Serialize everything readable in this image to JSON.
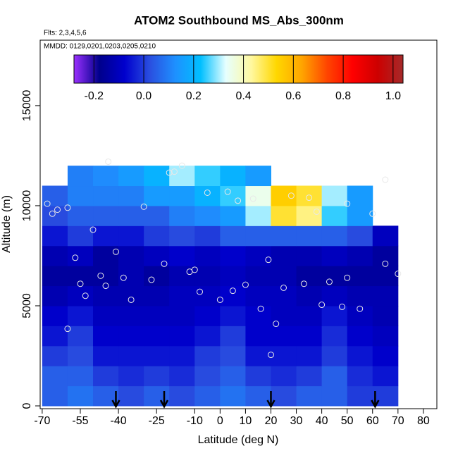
{
  "chart_data": {
    "type": "heatmap",
    "title": "ATOM2 Southbound MS_Abs_300nm",
    "subtitle_1": "Flts: 2,3,4,5,6",
    "subtitle_2": "MMDD: 0129,0201,0203,0205,0210",
    "x_label": "Latitude (deg N)",
    "y_label": "Altitude (m)",
    "xlim": [
      -70.8,
      85.3
    ],
    "ylim": [
      -140,
      18270
    ],
    "xticks": [
      -70,
      -55,
      -40,
      -25,
      -10,
      0,
      10,
      20,
      30,
      40,
      50,
      60,
      70,
      80
    ],
    "yticks": [
      0,
      5000,
      10000,
      15000
    ],
    "x_edges": [
      -70,
      -60,
      -50,
      -40,
      -30,
      -20,
      -10,
      0,
      10,
      20,
      30,
      40,
      50,
      60,
      70
    ],
    "y_edges": [
      0,
      1000,
      2000,
      3000,
      4000,
      5000,
      6000,
      7000,
      8000,
      9000,
      10000,
      11000,
      12000
    ],
    "z": [
      [
        0.05,
        0.08,
        0.05,
        0.02,
        0.05,
        0.02,
        0.05,
        0.08,
        0.05,
        0.02,
        0.05,
        0.05,
        0.0,
        0.0
      ],
      [
        0.05,
        0.05,
        0.0,
        -0.02,
        0.0,
        -0.02,
        0.02,
        0.05,
        0.0,
        -0.02,
        0.0,
        0.05,
        -0.02,
        -0.05
      ],
      [
        0.0,
        0.02,
        -0.05,
        -0.05,
        -0.05,
        -0.05,
        0.0,
        0.02,
        -0.05,
        -0.05,
        -0.05,
        0.0,
        -0.05,
        -0.08
      ],
      [
        -0.05,
        0.0,
        -0.08,
        -0.08,
        -0.08,
        -0.08,
        -0.05,
        0.0,
        -0.08,
        -0.08,
        -0.08,
        -0.02,
        -0.08,
        -0.1
      ],
      [
        -0.08,
        -0.05,
        -0.1,
        -0.1,
        -0.1,
        -0.1,
        -0.08,
        -0.05,
        -0.08,
        -0.1,
        -0.1,
        -0.05,
        -0.1,
        -0.12
      ],
      [
        -0.12,
        -0.1,
        -0.12,
        -0.12,
        -0.12,
        -0.1,
        -0.1,
        -0.08,
        -0.1,
        -0.1,
        -0.12,
        -0.1,
        -0.12,
        -0.12
      ],
      [
        -0.15,
        -0.15,
        -0.15,
        -0.12,
        -0.15,
        -0.12,
        -0.12,
        -0.1,
        -0.12,
        -0.12,
        -0.15,
        -0.15,
        -0.15,
        -0.15
      ],
      [
        -0.12,
        -0.1,
        -0.15,
        -0.12,
        -0.1,
        -0.08,
        -0.1,
        -0.08,
        -0.1,
        -0.12,
        -0.12,
        -0.1,
        -0.12,
        -0.15
      ],
      [
        -0.05,
        0.0,
        -0.05,
        -0.05,
        0.0,
        0.02,
        0.0,
        0.05,
        0.05,
        0.05,
        0.05,
        0.05,
        0.02,
        -0.1
      ],
      [
        0.02,
        0.05,
        0.05,
        0.05,
        0.05,
        0.1,
        0.12,
        0.15,
        0.3,
        0.5,
        0.45,
        0.25,
        0.15,
        null
      ],
      [
        0.05,
        0.1,
        0.1,
        0.1,
        0.15,
        0.15,
        0.2,
        0.25,
        0.35,
        0.55,
        0.5,
        0.3,
        0.15,
        null
      ],
      [
        null,
        0.1,
        0.12,
        0.15,
        0.2,
        0.3,
        0.25,
        0.2,
        0.15,
        null,
        null,
        null,
        null,
        null
      ]
    ],
    "clim": [
      -0.28,
      1.04
    ],
    "cticks": [
      -0.2,
      {
        "value": 0,
        "label": "0.0"
      },
      0.2,
      0.4,
      0.6,
      0.8,
      {
        "value": 1,
        "label": "1.0"
      }
    ],
    "colors": [
      "#9b30ff",
      "#00008b",
      "#0000cd",
      "#2a4fe0",
      "#1e90ff",
      "#00bfff",
      "#e6ffff",
      "#fff8a0",
      "#ffd700",
      "#ffa500",
      "#ff4500",
      "#ff0000",
      "#cd0000",
      "#a52a2a"
    ],
    "points": {
      "x": [
        -68,
        -66,
        -64,
        -60,
        -57,
        -55,
        -53,
        -50,
        -47,
        -44,
        -41,
        -38,
        -35,
        -30,
        -27,
        -22,
        -18,
        -15,
        -12,
        -10,
        -8,
        -5,
        0,
        3,
        7,
        10,
        13,
        16,
        19,
        22,
        25,
        28,
        33,
        38,
        40,
        43,
        48,
        50,
        55,
        60,
        65,
        70,
        -60,
        -45,
        -20,
        5,
        20,
        35,
        50,
        65
      ],
      "y": [
        10100,
        9600,
        9800,
        9900,
        7400,
        6100,
        5500,
        8800,
        6500,
        12200,
        7700,
        6400,
        5300,
        9950,
        6300,
        7100,
        11700,
        12000,
        6700,
        6800,
        5700,
        10650,
        5300,
        10700,
        10250,
        6050,
        10350,
        4850,
        7300,
        4100,
        5900,
        10500,
        6100,
        9700,
        5050,
        6200,
        4950,
        10100,
        4850,
        9600,
        11300,
        6600,
        3850,
        6000,
        11650,
        5750,
        2550,
        10400,
        6400,
        7100
      ]
    },
    "arrows_x": [
      -41,
      -22,
      20,
      61
    ]
  }
}
